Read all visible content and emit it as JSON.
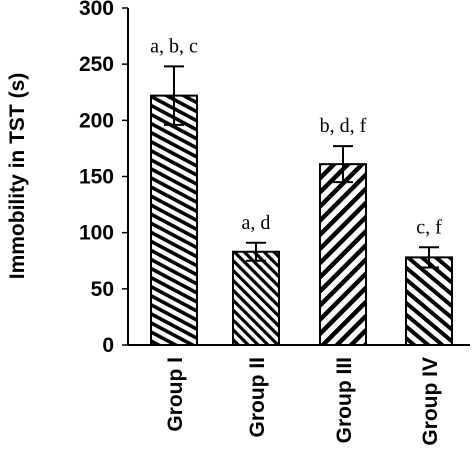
{
  "chart_data": {
    "type": "bar",
    "title": "",
    "xlabel": "",
    "ylabel": "Immobility in TST (s)",
    "ylim": [
      0,
      300
    ],
    "yticks": [
      0,
      50,
      100,
      150,
      200,
      250,
      300
    ],
    "categories": [
      "Group I",
      "Group II",
      "Group III",
      "Group IV"
    ],
    "values": [
      222,
      83,
      161,
      78
    ],
    "errors": [
      26,
      8,
      16,
      9
    ],
    "annotations": [
      "a, b, c",
      "a, d",
      "b, d, f",
      "c, f"
    ],
    "grid": false,
    "legend": "none",
    "bar_fill": "diagonal hatch",
    "colors": {
      "bar_stroke": "#000000",
      "hatch": "#000000",
      "background": "#ffffff"
    }
  }
}
